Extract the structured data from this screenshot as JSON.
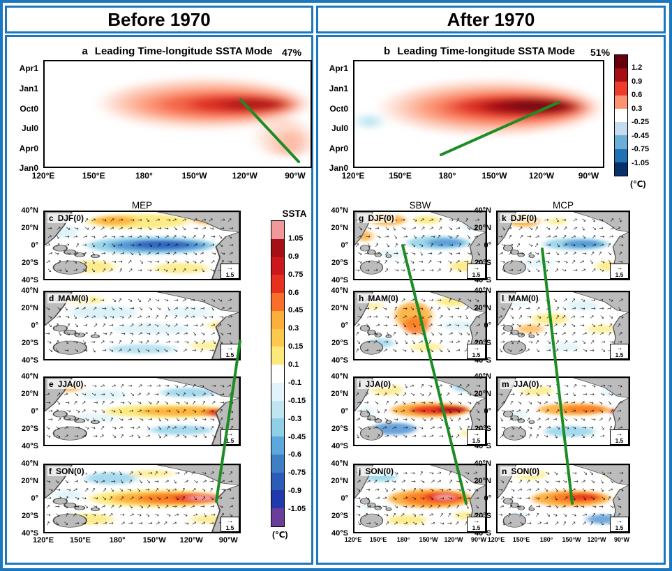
{
  "accent_blue": "#1b78c0",
  "green_line_color": "#1d8c24",
  "header": {
    "before_title": "Before 1970",
    "after_title": "After 1970"
  },
  "hovmoller_panels": [
    {
      "label": "a",
      "title": "Leading Time-longitude SSTA Mode",
      "variance": "47%"
    },
    {
      "label": "b",
      "title": "Leading Time-longitude SSTA Mode",
      "variance": "51%"
    }
  ],
  "hovmoller_time_ticks": [
    "Apr1",
    "Jan1",
    "Oct0",
    "Jul0",
    "Apr0",
    "Jan0"
  ],
  "lon_ticks": [
    "120°E",
    "150°E",
    "180°",
    "150°W",
    "120°W",
    "90°W"
  ],
  "map_y_ticks": [
    "40°N",
    "20°N",
    "0°",
    "20°S",
    "40°S"
  ],
  "vector_ref": "1.5",
  "icons": {
    "vector_arrow": "→",
    "reference_arrow": "→"
  },
  "top_colorbar": {
    "tick_labels": [
      "1.2",
      "0.9",
      "0.6",
      "0.3",
      "-0.25",
      "-0.45",
      "-0.75",
      "-1.05"
    ],
    "unit_label": "(℃)",
    "colors": [
      "#67000d",
      "#a50f15",
      "#ef3b2c",
      "#fc9272",
      "#ffffff",
      "#c6dbef",
      "#6baed6",
      "#2171b5",
      "#08306b"
    ]
  },
  "ssta_colorbar": {
    "title": "SSTA",
    "tick_labels": [
      "1.05",
      "0.9",
      "0.75",
      "0.6",
      "0.45",
      "0.3",
      "0.15",
      "0.1",
      "-0.1",
      "-0.15",
      "-0.3",
      "-0.45",
      "-0.6",
      "-0.75",
      "-0.9",
      "-1.05"
    ],
    "unit_label": "(℃)",
    "colors": [
      "#f2989b",
      "#a50f15",
      "#cb181d",
      "#e8301f",
      "#f96f2a",
      "#fdae3b",
      "#fdc94c",
      "#fde97a",
      "#ffffff",
      "#e2f3f9",
      "#bfe5f0",
      "#8fd0e8",
      "#5aa8dc",
      "#3f7fc4",
      "#2a5cb8",
      "#1f3bab",
      "#6a3d9a"
    ]
  },
  "map_columns": [
    {
      "title": "MEP",
      "panels": [
        {
          "label": "c",
          "season": "DJF(0)"
        },
        {
          "label": "d",
          "season": "MAM(0)"
        },
        {
          "label": "e",
          "season": "JJA(0)"
        },
        {
          "label": "f",
          "season": "SON(0)"
        }
      ]
    },
    {
      "title": "SBW",
      "panels": [
        {
          "label": "g",
          "season": "DJF(0)"
        },
        {
          "label": "h",
          "season": "MAM(0)"
        },
        {
          "label": "i",
          "season": "JJA(0)"
        },
        {
          "label": "j",
          "season": "SON(0)"
        }
      ]
    },
    {
      "title": "MCP",
      "panels": [
        {
          "label": "k",
          "season": "DJF(0)"
        },
        {
          "label": "l",
          "season": "MAM(0)"
        },
        {
          "label": "m",
          "season": "JJA(0)"
        },
        {
          "label": "n",
          "season": "SON(0)"
        }
      ]
    }
  ],
  "chart_data": [
    {
      "type": "heatmap",
      "panel": "a",
      "group": "Before 1970",
      "title": "Leading Time-longitude SSTA Mode",
      "variance_explained": "47%",
      "x_ticks": [
        "120°E",
        "150°E",
        "180°",
        "150°W",
        "120°W",
        "90°W"
      ],
      "y_ticks_bottom_to_top": [
        "Jan0",
        "Apr0",
        "Jul0",
        "Oct0",
        "Jan1",
        "Apr1"
      ],
      "colorbar_ticks_degC": [
        1.2,
        0.9,
        0.6,
        0.3,
        -0.25,
        -0.45,
        -0.75,
        -1.05
      ],
      "summary": "Warm SSTA (up to ~0.9-1.2 C) spanning ~180-90W from Jul0 through Apr1, core near 150W-110W around Oct0-Jan1; green reference line slopes down-eastward from ~125W,Nov0 to ~88W,Mar0."
    },
    {
      "type": "heatmap",
      "panel": "b",
      "group": "After 1970",
      "title": "Leading Time-longitude SSTA Mode",
      "variance_explained": "51%",
      "x_ticks": [
        "120°E",
        "150°E",
        "180°",
        "150°W",
        "120°W",
        "90°W"
      ],
      "y_ticks_bottom_to_top": [
        "Jan0",
        "Apr0",
        "Jul0",
        "Oct0",
        "Jan1",
        "Apr1"
      ],
      "colorbar_ticks_degC": [
        1.2,
        0.9,
        0.6,
        0.3,
        -0.25,
        -0.45,
        -0.75,
        -1.05
      ],
      "summary": "Stronger warm SSTA (core > 1.2 C) spanning ~170E-90W, core near 160W-120W around Oct0-Jan1; small cool patch near 130E; green reference line slopes up-eastward from ~175E,Apr0 to ~115W,Nov0."
    },
    {
      "type": "heatmap",
      "column": "MEP",
      "group": "Before 1970",
      "panels": [
        "c DJF(0)",
        "d MAM(0)",
        "e JJA(0)",
        "f SON(0)"
      ],
      "x_ticks": [
        "120°E",
        "150°E",
        "180°",
        "150°W",
        "120°W",
        "90°W"
      ],
      "y_ticks": [
        "40°N",
        "20°N",
        "0°",
        "20°S",
        "40°S"
      ],
      "colorbar_title": "SSTA",
      "colorbar_ticks_degC": [
        1.05,
        0.9,
        0.75,
        0.6,
        0.45,
        0.3,
        0.15,
        0.1,
        -0.1,
        -0.15,
        -0.3,
        -0.45,
        -0.6,
        -0.75,
        -0.9,
        -1.05
      ],
      "wind_vector_reference": 1.5,
      "summary": "Seasonal SSTA maps with surface wind vectors: cool equatorial band in DJF(0), weak anomalies with far-eastern warming in MAM(0), warm band east of 180 in JJA(0), strong warm band with eastern maximum in SON(0); green line links MAM(0) far-eastern warming to SON(0) central warming."
    },
    {
      "type": "heatmap",
      "column": "SBW",
      "group": "After 1970",
      "panels": [
        "g DJF(0)",
        "h MAM(0)",
        "i JJA(0)",
        "j SON(0)"
      ],
      "x_ticks": [
        "120°E",
        "150°E",
        "180°",
        "150°W",
        "120°W",
        "90°W"
      ],
      "y_ticks": [
        "40°N",
        "20°N",
        "0°",
        "20°S",
        "40°S"
      ],
      "colorbar_title": "SSTA",
      "colorbar_ticks_degC": [
        1.05,
        0.9,
        0.75,
        0.6,
        0.45,
        0.3,
        0.15,
        0.1,
        -0.1,
        -0.15,
        -0.3,
        -0.45,
        -0.6,
        -0.75,
        -0.9,
        -1.05
      ],
      "wind_vector_reference": 1.5,
      "summary": "Warm anomalies initiate in the western/central Pacific in MAM(0) and amplify eastward by JJA(0)-SON(0); green line tracks southeastward development across the seasons."
    },
    {
      "type": "heatmap",
      "column": "MCP",
      "group": "After 1970",
      "panels": [
        "k DJF(0)",
        "l MAM(0)",
        "m JJA(0)",
        "n SON(0)"
      ],
      "x_ticks": [
        "120°E",
        "150°E",
        "180°",
        "150°W",
        "120°W",
        "90°W"
      ],
      "y_ticks": [
        "40°N",
        "20°N",
        "0°",
        "20°S",
        "40°S"
      ],
      "colorbar_title": "SSTA",
      "colorbar_ticks_degC": [
        1.05,
        0.9,
        0.75,
        0.6,
        0.45,
        0.3,
        0.15,
        0.1,
        -0.1,
        -0.15,
        -0.3,
        -0.45,
        -0.6,
        -0.75,
        -0.9,
        -1.05
      ],
      "wind_vector_reference": 1.5,
      "summary": "Warm anomalies develop in the central Pacific by JJA(0) and strengthen along the equator in SON(0); green line tracks central-Pacific development."
    }
  ]
}
